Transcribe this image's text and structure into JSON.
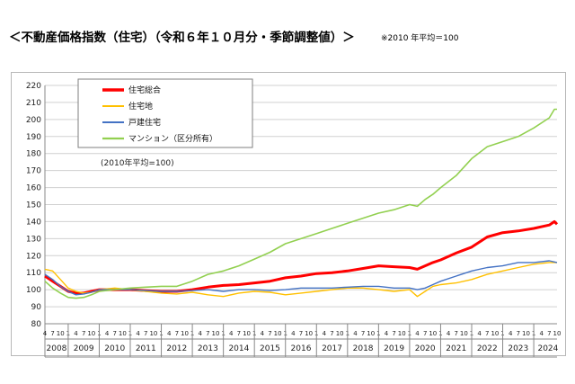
{
  "page": {
    "title": "＜不動産価格指数（住宅）（令和６年１０月分・季節調整値）＞",
    "base_note": "※2010 年平均＝100"
  },
  "chart_data": {
    "type": "line",
    "ylim": [
      80,
      220
    ],
    "yticks": [
      80,
      90,
      100,
      110,
      120,
      130,
      140,
      150,
      160,
      170,
      180,
      190,
      200,
      210,
      220
    ],
    "grid": true,
    "legend_position": "top-left",
    "annotation": "(2010年平均=100)",
    "years": [
      "2008",
      "2009",
      "2010",
      "2011",
      "2012",
      "2013",
      "2014",
      "2015",
      "2016",
      "2017",
      "2018",
      "2019",
      "2020",
      "2021",
      "2022",
      "2023",
      "2024"
    ],
    "month_labels": [
      "4",
      "7",
      "10",
      "1"
    ],
    "x_start": "2008-04",
    "x_end": "2024-10",
    "series": [
      {
        "name": "住宅総合",
        "color": "#ff0000",
        "width": 3,
        "points": [
          [
            "2008-04",
            108
          ],
          [
            "2008-07",
            105
          ],
          [
            "2008-10",
            102
          ],
          [
            "2009-01",
            99
          ],
          [
            "2009-04",
            98
          ],
          [
            "2009-07",
            98
          ],
          [
            "2009-10",
            99
          ],
          [
            "2010-01",
            100
          ],
          [
            "2010-07",
            100
          ],
          [
            "2011-01",
            100
          ],
          [
            "2011-07",
            99.5
          ],
          [
            "2012-01",
            99
          ],
          [
            "2012-07",
            99
          ],
          [
            "2013-01",
            100
          ],
          [
            "2013-07",
            101.5
          ],
          [
            "2014-01",
            102.5
          ],
          [
            "2014-07",
            103
          ],
          [
            "2015-01",
            104
          ],
          [
            "2015-07",
            105
          ],
          [
            "2016-01",
            107
          ],
          [
            "2016-07",
            108
          ],
          [
            "2017-01",
            109.5
          ],
          [
            "2017-07",
            110
          ],
          [
            "2018-01",
            111
          ],
          [
            "2018-07",
            112.5
          ],
          [
            "2019-01",
            114
          ],
          [
            "2019-07",
            113.5
          ],
          [
            "2020-01",
            113
          ],
          [
            "2020-04",
            112
          ],
          [
            "2020-07",
            114
          ],
          [
            "2020-10",
            116
          ],
          [
            "2021-01",
            117.5
          ],
          [
            "2021-07",
            121.5
          ],
          [
            "2022-01",
            125
          ],
          [
            "2022-07",
            131
          ],
          [
            "2023-01",
            133.5
          ],
          [
            "2023-07",
            134.5
          ],
          [
            "2024-01",
            136
          ],
          [
            "2024-07",
            138
          ],
          [
            "2024-09",
            140
          ],
          [
            "2024-10",
            138.5
          ]
        ]
      },
      {
        "name": "住宅地",
        "color": "#ffc000",
        "width": 1.4,
        "points": [
          [
            "2008-04",
            112
          ],
          [
            "2008-07",
            111
          ],
          [
            "2008-10",
            106
          ],
          [
            "2009-01",
            101
          ],
          [
            "2009-04",
            99
          ],
          [
            "2009-07",
            98
          ],
          [
            "2009-10",
            98.5
          ],
          [
            "2010-01",
            100
          ],
          [
            "2010-07",
            101
          ],
          [
            "2011-01",
            100
          ],
          [
            "2011-07",
            99
          ],
          [
            "2012-01",
            98
          ],
          [
            "2012-07",
            97.5
          ],
          [
            "2013-01",
            98.5
          ],
          [
            "2013-07",
            97
          ],
          [
            "2014-01",
            96
          ],
          [
            "2014-07",
            98
          ],
          [
            "2015-01",
            99
          ],
          [
            "2015-07",
            98.5
          ],
          [
            "2016-01",
            97
          ],
          [
            "2016-07",
            98
          ],
          [
            "2017-01",
            99
          ],
          [
            "2017-07",
            100
          ],
          [
            "2018-01",
            101
          ],
          [
            "2018-07",
            101
          ],
          [
            "2019-01",
            100
          ],
          [
            "2019-07",
            99
          ],
          [
            "2020-01",
            100
          ],
          [
            "2020-04",
            96
          ],
          [
            "2020-07",
            99
          ],
          [
            "2020-10",
            102
          ],
          [
            "2021-01",
            103
          ],
          [
            "2021-07",
            104
          ],
          [
            "2022-01",
            106
          ],
          [
            "2022-07",
            109
          ],
          [
            "2023-01",
            111
          ],
          [
            "2023-07",
            113
          ],
          [
            "2024-01",
            115
          ],
          [
            "2024-07",
            116
          ],
          [
            "2024-10",
            116
          ]
        ]
      },
      {
        "name": "戸建住宅",
        "color": "#4472c4",
        "width": 1.4,
        "points": [
          [
            "2008-04",
            109
          ],
          [
            "2008-07",
            106
          ],
          [
            "2008-10",
            102
          ],
          [
            "2009-01",
            99
          ],
          [
            "2009-04",
            97
          ],
          [
            "2009-07",
            97.5
          ],
          [
            "2009-10",
            98.5
          ],
          [
            "2010-01",
            100
          ],
          [
            "2010-07",
            100
          ],
          [
            "2011-01",
            100
          ],
          [
            "2011-07",
            99.5
          ],
          [
            "2012-01",
            99
          ],
          [
            "2012-07",
            99
          ],
          [
            "2013-01",
            99.5
          ],
          [
            "2013-07",
            100
          ],
          [
            "2014-01",
            99
          ],
          [
            "2014-07",
            100
          ],
          [
            "2015-01",
            100
          ],
          [
            "2015-07",
            99.5
          ],
          [
            "2016-01",
            100
          ],
          [
            "2016-07",
            101
          ],
          [
            "2017-01",
            101
          ],
          [
            "2017-07",
            101
          ],
          [
            "2018-01",
            101.5
          ],
          [
            "2018-07",
            102
          ],
          [
            "2019-01",
            102
          ],
          [
            "2019-07",
            101
          ],
          [
            "2020-01",
            101
          ],
          [
            "2020-04",
            100
          ],
          [
            "2020-07",
            101
          ],
          [
            "2020-10",
            103
          ],
          [
            "2021-01",
            105
          ],
          [
            "2021-07",
            108
          ],
          [
            "2022-01",
            111
          ],
          [
            "2022-07",
            113
          ],
          [
            "2023-01",
            114
          ],
          [
            "2023-07",
            116
          ],
          [
            "2024-01",
            116
          ],
          [
            "2024-07",
            117
          ],
          [
            "2024-10",
            116
          ]
        ]
      },
      {
        "name": "マンション（区分所有）",
        "color": "#92d050",
        "width": 1.6,
        "points": [
          [
            "2008-04",
            105
          ],
          [
            "2008-07",
            101
          ],
          [
            "2008-10",
            98
          ],
          [
            "2009-01",
            95.5
          ],
          [
            "2009-04",
            95
          ],
          [
            "2009-07",
            95.5
          ],
          [
            "2009-10",
            97
          ],
          [
            "2010-01",
            99
          ],
          [
            "2010-07",
            100
          ],
          [
            "2011-01",
            101
          ],
          [
            "2011-07",
            101.5
          ],
          [
            "2012-01",
            102
          ],
          [
            "2012-07",
            102
          ],
          [
            "2013-01",
            105
          ],
          [
            "2013-07",
            109
          ],
          [
            "2014-01",
            111
          ],
          [
            "2014-07",
            114
          ],
          [
            "2015-01",
            118
          ],
          [
            "2015-07",
            122
          ],
          [
            "2016-01",
            127
          ],
          [
            "2016-07",
            130
          ],
          [
            "2017-01",
            133
          ],
          [
            "2017-07",
            136
          ],
          [
            "2018-01",
            139
          ],
          [
            "2018-07",
            142
          ],
          [
            "2019-01",
            145
          ],
          [
            "2019-07",
            147
          ],
          [
            "2020-01",
            150
          ],
          [
            "2020-04",
            149
          ],
          [
            "2020-07",
            153
          ],
          [
            "2020-10",
            156
          ],
          [
            "2021-01",
            160
          ],
          [
            "2021-07",
            167
          ],
          [
            "2022-01",
            177
          ],
          [
            "2022-07",
            184
          ],
          [
            "2023-01",
            187
          ],
          [
            "2023-07",
            190
          ],
          [
            "2024-01",
            195
          ],
          [
            "2024-07",
            201
          ],
          [
            "2024-09",
            206
          ],
          [
            "2024-10",
            206
          ]
        ]
      }
    ]
  }
}
